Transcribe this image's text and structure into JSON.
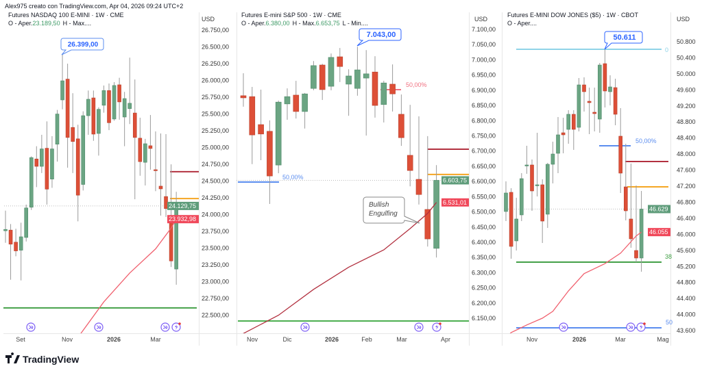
{
  "header": {
    "attribution": "Alex975 creato con TradingView.com, Apr 04, 2026 09:24 UTC+2"
  },
  "logo": {
    "text": "TradingView"
  },
  "colors": {
    "up": "#6ba583",
    "down": "#dd4f37",
    "wick": "#9a9a9a",
    "ma_nasdaq": "#f0606e",
    "ma_sp": "#b2303f",
    "ma_dow": "#f0606e",
    "event": "#7b5cf5",
    "ohlc_value": "#3e9a66"
  },
  "chart_data": [
    {
      "id": "nasdaq",
      "type": "candlestick",
      "title": "Futures NASDAQ 100 E-MINI · 1W · CME",
      "ohlc_text": {
        "o_label": "O - Aper.",
        "o_value": "23.189,50",
        "h_label": "H - Max...."
      },
      "currency": "USD",
      "y_ticks": [
        "26.750,00",
        "26.500,00",
        "26.250,00",
        "26.000,00",
        "25.750,00",
        "25.500,00",
        "25.250,00",
        "25.000,00",
        "24.750,00",
        "24.500,00",
        "24.250,00",
        "24.000,00",
        "23.750,00",
        "23.500,00",
        "23.250,00",
        "23.000,00",
        "22.750,00",
        "22.500,00"
      ],
      "ylim": [
        22450,
        26800
      ],
      "x_ticks": [
        "Set",
        "Nov",
        "2026",
        "Mar"
      ],
      "candles": [
        [
          23760,
          24060,
          23580,
          23780
        ],
        [
          23770,
          23860,
          23030,
          23560
        ],
        [
          23590,
          23790,
          23380,
          23460
        ],
        [
          23470,
          23880,
          23020,
          23670
        ],
        [
          23660,
          24150,
          23600,
          24100
        ],
        [
          24110,
          24870,
          24070,
          24850
        ],
        [
          24830,
          25020,
          24410,
          24720
        ],
        [
          24720,
          25190,
          24620,
          24980
        ],
        [
          24990,
          25390,
          24150,
          24380
        ],
        [
          24530,
          25170,
          24400,
          24980
        ],
        [
          25050,
          25560,
          24790,
          25500
        ],
        [
          25710,
          26399,
          25570,
          25995
        ],
        [
          26020,
          26250,
          24700,
          25150
        ],
        [
          25300,
          25810,
          24620,
          25090
        ],
        [
          25130,
          25340,
          23900,
          24290
        ],
        [
          24450,
          25540,
          24360,
          25475
        ],
        [
          25475,
          25850,
          25190,
          25720
        ],
        [
          25740,
          25850,
          25100,
          25200
        ],
        [
          25210,
          25600,
          24880,
          25570
        ],
        [
          25630,
          25925,
          25520,
          25850
        ],
        [
          25850,
          25955,
          25260,
          25370
        ],
        [
          25425,
          25975,
          25400,
          25925
        ],
        [
          25935,
          26040,
          25415,
          25680
        ],
        [
          25455,
          25830,
          25020,
          25730
        ],
        [
          25580,
          26340,
          25350,
          25660
        ],
        [
          25515,
          26015,
          24230,
          25150
        ],
        [
          25140,
          25445,
          24580,
          24790
        ],
        [
          24780,
          25130,
          24435,
          25057
        ],
        [
          25027,
          25485,
          24670,
          24986
        ],
        [
          24670,
          25240,
          24350,
          24660
        ],
        [
          24425,
          25210,
          23986,
          24384
        ],
        [
          24270,
          25200,
          23965,
          24090
        ],
        [
          23895,
          24750,
          23220,
          23310
        ],
        [
          23189.5,
          24340,
          22956,
          24129.75
        ]
      ],
      "moving_average": [
        [
          14,
          22170
        ],
        [
          19,
          22700
        ],
        [
          24,
          23130
        ],
        [
          29,
          23490
        ],
        [
          32,
          23800
        ],
        [
          33,
          23932.98
        ]
      ],
      "levels": [
        {
          "price": 24640,
          "color": "#b2303f"
        },
        {
          "price": 24240,
          "color": "#f5a623"
        },
        {
          "price": 22610,
          "color": "#43a047"
        }
      ],
      "last_price_label": "24.129,75",
      "ma_label": "23.932,98",
      "high_callout": "26.399,00",
      "events": [
        "split-arrow",
        "split-arrow",
        "split-arrow",
        "lightning"
      ]
    },
    {
      "id": "sp500",
      "type": "candlestick",
      "title": "Futures E-mini S&P 500 · 1W · CME",
      "ohlc_text": {
        "o_label": "O - Aper.",
        "o_value": "6.380,00",
        "h_label": "H - Max.",
        "h_value": "6.653,75",
        "l_label": "L - Min...."
      },
      "currency": "USD",
      "y_ticks": [
        "7.100,00",
        "7.050,00",
        "7.000,00",
        "6.950,00",
        "6.900,00",
        "6.850,00",
        "6.800,00",
        "6.750,00",
        "6.700,00",
        "6.650,00",
        "6.600,00",
        "6.550,00",
        "6.500,00",
        "6.450,00",
        "6.400,00",
        "6.350,00",
        "6.300,00",
        "6.250,00",
        "6.200,00",
        "6.150,00"
      ],
      "ylim": [
        6100,
        7110
      ],
      "x_ticks": [
        "Nov",
        "Dic",
        "2026",
        "Feb",
        "Mar",
        "Apr"
      ],
      "candles": [
        [
          6882,
          6956,
          6846,
          6875
        ],
        [
          6879,
          6911,
          6657,
          6753
        ],
        [
          6787,
          6902,
          6670,
          6756
        ],
        [
          6765,
          6801,
          6526,
          6618
        ],
        [
          6654,
          6866,
          6627,
          6861
        ],
        [
          6855,
          6906,
          6803,
          6879
        ],
        [
          6884,
          6931,
          6807,
          6830
        ],
        [
          6830,
          6891,
          6774,
          6888
        ],
        [
          6906,
          6996,
          6900,
          6981
        ],
        [
          6983,
          6987,
          6868,
          6902
        ],
        [
          6913,
          7021,
          6900,
          7008
        ],
        [
          7010,
          7039,
          6927,
          6978
        ],
        [
          6920,
          6969,
          6816,
          6947
        ],
        [
          6906,
          7043,
          6882,
          6967
        ],
        [
          6940,
          7032,
          6751,
          6954
        ],
        [
          6960,
          7012,
          6810,
          6850
        ],
        [
          6853,
          6931,
          6794,
          6924
        ],
        [
          6920,
          6985,
          6830,
          6888
        ],
        [
          6821,
          6886,
          6717,
          6744
        ],
        [
          6686,
          6852,
          6584,
          6636
        ],
        [
          6607,
          6814,
          6524,
          6557
        ],
        [
          6508,
          6749,
          6386,
          6411
        ],
        [
          6380,
          6653.75,
          6350,
          6603.75
        ]
      ],
      "moving_average": [
        [
          0,
          6100
        ],
        [
          4,
          6160
        ],
        [
          8,
          6245
        ],
        [
          12,
          6318
        ],
        [
          16,
          6375
        ],
        [
          19,
          6445
        ],
        [
          21,
          6495
        ],
        [
          22,
          6531.01
        ]
      ],
      "levels": [
        {
          "price": 6706,
          "color": "#b2303f"
        },
        {
          "price": 6623,
          "color": "#f5a623"
        },
        {
          "price": 6598,
          "color": "#5b8def",
          "label": "50,00%"
        },
        {
          "price": 6902,
          "color": "#f07080",
          "label": "50,00%"
        },
        {
          "price": 6141,
          "color": "#4caf50"
        }
      ],
      "last_price_label": "6.603,75",
      "ma_label": "6.531,01",
      "high_callout": "7.043,00",
      "annotation": {
        "line1": "Bullish",
        "line2": "Engulfing"
      },
      "events": [
        "split-arrow",
        "split-arrow",
        "lightning"
      ]
    },
    {
      "id": "dow",
      "type": "candlestick",
      "title": "Futures E-MINI DOW JONES ($5) · 1W · CBOT",
      "ohlc_text": {
        "o_label": "O - Aper...."
      },
      "currency": "USD",
      "y_ticks": [
        "50.800",
        "50.400",
        "50.000",
        "49.600",
        "49.200",
        "48.800",
        "48.400",
        "48.000",
        "47.600",
        "47.200",
        "46.800",
        "46.400",
        "46.000",
        "45.600",
        "45.200",
        "44.800",
        "44.400",
        "44.000",
        "43.600"
      ],
      "ylim": [
        43500,
        50900
      ],
      "x_ticks": [
        "Nov",
        "2026",
        "Mar",
        "Mag"
      ],
      "candles": [
        [
          46569,
          47320,
          46330,
          47030
        ],
        [
          47047,
          47149,
          45392,
          45699
        ],
        [
          45836,
          46911,
          45597,
          46382
        ],
        [
          46484,
          47525,
          46330,
          47388
        ],
        [
          47712,
          48207,
          47508,
          47729
        ],
        [
          47729,
          47866,
          46586,
          47081
        ],
        [
          47218,
          48531,
          46944,
          47235
        ],
        [
          47235,
          47371,
          45784,
          46330
        ],
        [
          46501,
          47781,
          46160,
          47746
        ],
        [
          47746,
          48309,
          47269,
          48002
        ],
        [
          48019,
          48923,
          47525,
          48480
        ],
        [
          48531,
          48906,
          48019,
          48480
        ],
        [
          48616,
          49094,
          48258,
          48992
        ],
        [
          48992,
          49094,
          48105,
          48616
        ],
        [
          48667,
          49896,
          48565,
          49725
        ],
        [
          49725,
          49913,
          49060,
          49555
        ],
        [
          49316,
          49657,
          48497,
          49282
        ],
        [
          49043,
          49657,
          48565,
          49009
        ],
        [
          48872,
          50271,
          48531,
          50220
        ],
        [
          50254,
          50611,
          49162,
          49572
        ],
        [
          49555,
          49964,
          49213,
          49674
        ],
        [
          49657,
          49879,
          48719,
          48992
        ],
        [
          48446,
          49145,
          47030,
          47525
        ],
        [
          47183,
          48258,
          46347,
          46586
        ],
        [
          46382,
          47764,
          45665,
          45887
        ],
        [
          45597,
          47218,
          45307,
          45409
        ],
        [
          45409,
          47081,
          45068,
          46629
        ]
      ],
      "moving_average": [
        [
          1,
          43550
        ],
        [
          4,
          43740
        ],
        [
          7,
          43910
        ],
        [
          9,
          44080
        ],
        [
          12,
          44590
        ],
        [
          15,
          45020
        ],
        [
          19,
          45270
        ],
        [
          22,
          45530
        ],
        [
          25,
          45960
        ],
        [
          26,
          46055
        ]
      ],
      "levels": [
        {
          "price": 50612,
          "color": "#8fd3e8",
          "label": "0"
        },
        {
          "price": 48207,
          "color": "#5b8def",
          "label": "50,00%"
        },
        {
          "price": 47815,
          "color": "#b2303f"
        },
        {
          "price": 47183,
          "color": "#f5a623"
        },
        {
          "price": 45307,
          "color": "#43a047",
          "label": "38"
        },
        {
          "price": 43669,
          "color": "#5b8def",
          "label": "50"
        }
      ],
      "last_price_label": "46.629",
      "ma_label": "46.055",
      "high_callout": "50.611",
      "events": [
        "split-arrow",
        "split-arrow",
        "lightning"
      ]
    }
  ]
}
